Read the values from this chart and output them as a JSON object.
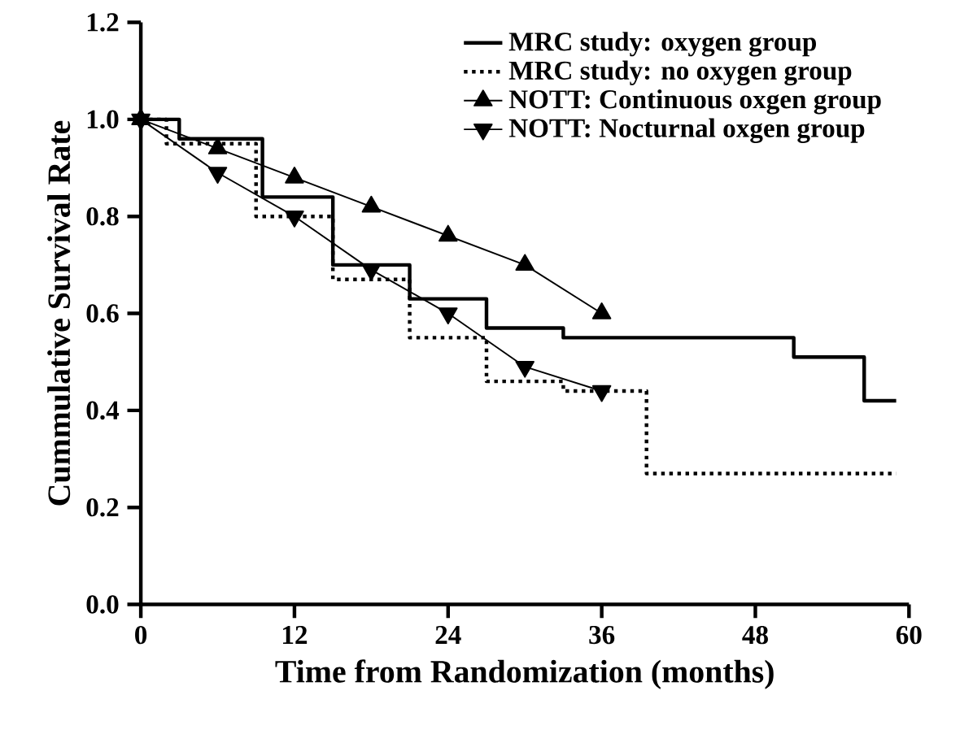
{
  "chart_data": {
    "type": "line",
    "xlabel": "Time from Randomization (months)",
    "ylabel": "Cummulative Survival Rate",
    "xlim": [
      0,
      60
    ],
    "xticks": [
      0,
      12,
      24,
      36,
      48,
      60
    ],
    "ylim": [
      0,
      1.2
    ],
    "yticks": [
      {
        "value": 0,
        "label": "0.0"
      },
      {
        "value": 0.2,
        "label": "0.2"
      },
      {
        "value": 0.4,
        "label": "0.4"
      },
      {
        "value": 0.6,
        "label": "0.6"
      },
      {
        "value": 0.8,
        "label": "0.8"
      },
      {
        "value": 1.0,
        "label": "1.0"
      },
      {
        "value": 1.2,
        "label": "1.2"
      }
    ],
    "grid": false,
    "legend": "top right",
    "series": [
      {
        "name": "MRC study: oxygen group",
        "type": "step",
        "color": "#000000",
        "line_style": "solid",
        "marker": "none",
        "x": [
          0,
          3,
          9.5,
          15,
          21,
          27,
          33,
          51,
          56.5,
          59
        ],
        "values": [
          1.0,
          0.96,
          0.84,
          0.7,
          0.63,
          0.57,
          0.55,
          0.51,
          0.42,
          0.42
        ]
      },
      {
        "name": "MRC study: no oxygen group",
        "type": "step",
        "color": "#000000",
        "line_style": "dotted",
        "marker": "none",
        "x": [
          0,
          2,
          9,
          15,
          21,
          27,
          33,
          39.5,
          59
        ],
        "values": [
          1.0,
          0.95,
          0.8,
          0.67,
          0.55,
          0.46,
          0.44,
          0.27,
          0.27
        ]
      },
      {
        "name": "NOTT: Continuous oxgen group",
        "color": "#000000",
        "line_style": "solid",
        "marker": "triangle",
        "x": [
          0,
          6,
          12,
          18,
          24,
          30,
          36
        ],
        "values": [
          1.0,
          0.94,
          0.88,
          0.82,
          0.76,
          0.7,
          0.6
        ]
      },
      {
        "name": "NOTT: Nocturnal oxgen group",
        "color": "#000000",
        "line_style": "solid",
        "marker": "triangle down",
        "x": [
          0,
          6,
          12,
          18,
          24,
          30,
          36
        ],
        "values": [
          1.0,
          0.89,
          0.8,
          0.69,
          0.6,
          0.49,
          0.44
        ]
      }
    ]
  }
}
